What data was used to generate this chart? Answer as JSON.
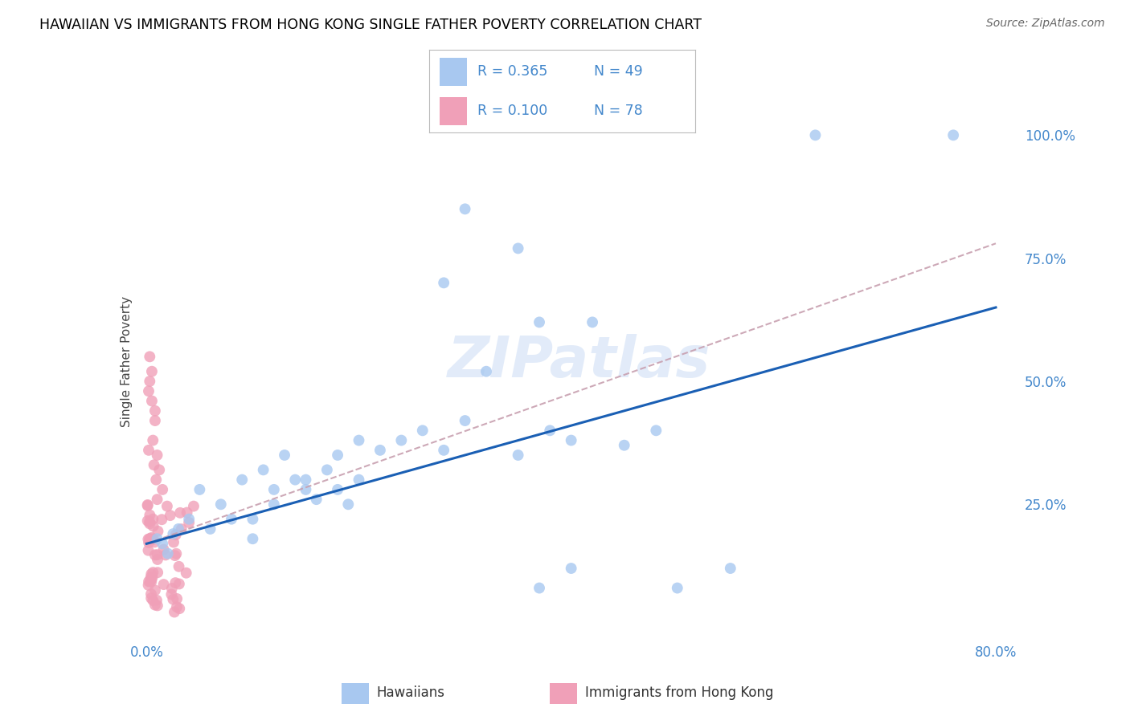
{
  "title": "HAWAIIAN VS IMMIGRANTS FROM HONG KONG SINGLE FATHER POVERTY CORRELATION CHART",
  "source": "Source: ZipAtlas.com",
  "ylabel": "Single Father Poverty",
  "legend_blue_R": "R = 0.365",
  "legend_blue_N": "N = 49",
  "legend_pink_R": "R = 0.100",
  "legend_pink_N": "N = 78",
  "legend_blue_label": "Hawaiians",
  "legend_pink_label": "Immigrants from Hong Kong",
  "blue_color": "#a8c8f0",
  "pink_color": "#f0a0b8",
  "blue_line_color": "#1a5fb4",
  "pink_line_color": "#c8a0b0",
  "watermark": "ZIPatlas",
  "xlim": [
    -0.005,
    0.82
  ],
  "ylim": [
    -0.02,
    1.1
  ],
  "ytick_vals": [
    0.25,
    0.5,
    0.75,
    1.0
  ],
  "ytick_labels": [
    "25.0%",
    "50.0%",
    "75.0%",
    "100.0%"
  ],
  "xtick_vals": [
    0.0,
    0.8
  ],
  "xtick_labels": [
    "0.0%",
    "80.0%"
  ],
  "blue_line_x": [
    0.0,
    0.8
  ],
  "blue_line_y": [
    0.17,
    0.65
  ],
  "pink_line_x": [
    0.0,
    0.8
  ],
  "pink_line_y": [
    0.17,
    0.78
  ],
  "tick_color": "#4488cc",
  "grid_color": "#d0d0d0",
  "title_fontsize": 12.5,
  "source_fontsize": 10,
  "tick_fontsize": 12,
  "ylabel_fontsize": 11,
  "watermark_color": "#d0dff5",
  "watermark_alpha": 0.6,
  "scatter_size": 100,
  "scatter_alpha": 0.8
}
